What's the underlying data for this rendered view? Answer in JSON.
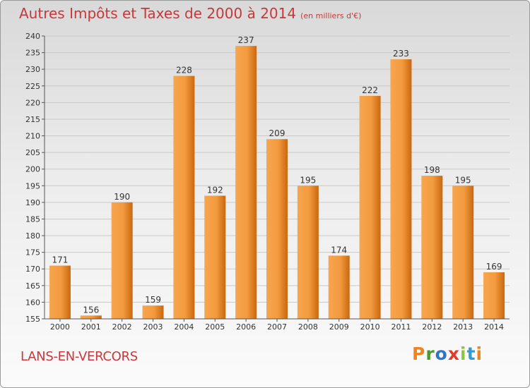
{
  "chart_title": "Autres Impôts et Taxes de 2000 à 2014",
  "chart_unit": "(en milliers d'€)",
  "place_name": "LANS-EN-VERCORS",
  "brand": "Proxiti",
  "colors": {
    "title": "#c8383a",
    "bar_light": "#f7a64f",
    "bar_dark": "#c9680f",
    "grid": "#c9c9c9",
    "logo_letters": [
      "#f0841c",
      "#4c9a2a",
      "#2f75c7",
      "#e23b2e",
      "#8cc63f",
      "#2f9bd6",
      "#f0841c"
    ]
  },
  "chart_data": {
    "type": "bar",
    "title": "Autres Impôts et Taxes de 2000 à 2014",
    "xlabel": "",
    "ylabel": "",
    "ylim": [
      155,
      240
    ],
    "y_ticks": [
      155,
      160,
      165,
      170,
      175,
      180,
      185,
      190,
      195,
      200,
      205,
      210,
      215,
      220,
      225,
      230,
      235,
      240
    ],
    "grid": true,
    "categories": [
      "2000",
      "2001",
      "2002",
      "2003",
      "2004",
      "2005",
      "2006",
      "2007",
      "2008",
      "2009",
      "2010",
      "2011",
      "2012",
      "2013",
      "2014"
    ],
    "values": [
      171,
      156,
      190,
      159,
      228,
      192,
      237,
      209,
      195,
      174,
      222,
      233,
      198,
      195,
      169
    ]
  }
}
